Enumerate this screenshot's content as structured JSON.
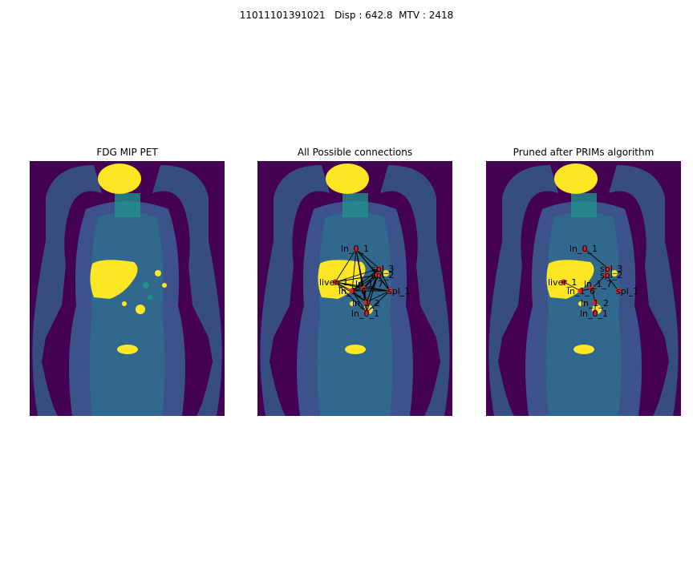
{
  "figure": {
    "title": "11011101391021   Disp : 642.8  MTV : 2418"
  },
  "panels": [
    {
      "title": "FDG MIP PET"
    },
    {
      "title": "All Possible connections"
    },
    {
      "title": "Pruned after PRIMs algorithm"
    }
  ],
  "colors": {
    "background": "#440154",
    "body_dark": "#3b528b",
    "body_mid": "#31688e",
    "body_light": "#21918c",
    "hot": "#fde725",
    "node": "#d62728",
    "edge": "#000000"
  },
  "nodes": [
    {
      "id": "ln_0_1",
      "label": "ln_0_1"
    },
    {
      "id": "spl_3",
      "label": "spl_3"
    },
    {
      "id": "spl_2",
      "label": "spl_2"
    },
    {
      "id": "liver_1",
      "label": "liver_1"
    },
    {
      "id": "ln_1_7",
      "label": "ln_1_7"
    },
    {
      "id": "ln_1_6",
      "label": "ln_1_6"
    },
    {
      "id": "spl_1",
      "label": "spl_1"
    },
    {
      "id": "ln_1_2",
      "label": "ln_1_2"
    },
    {
      "id": "ln_0_1b",
      "label": "ln_0_1"
    }
  ]
}
